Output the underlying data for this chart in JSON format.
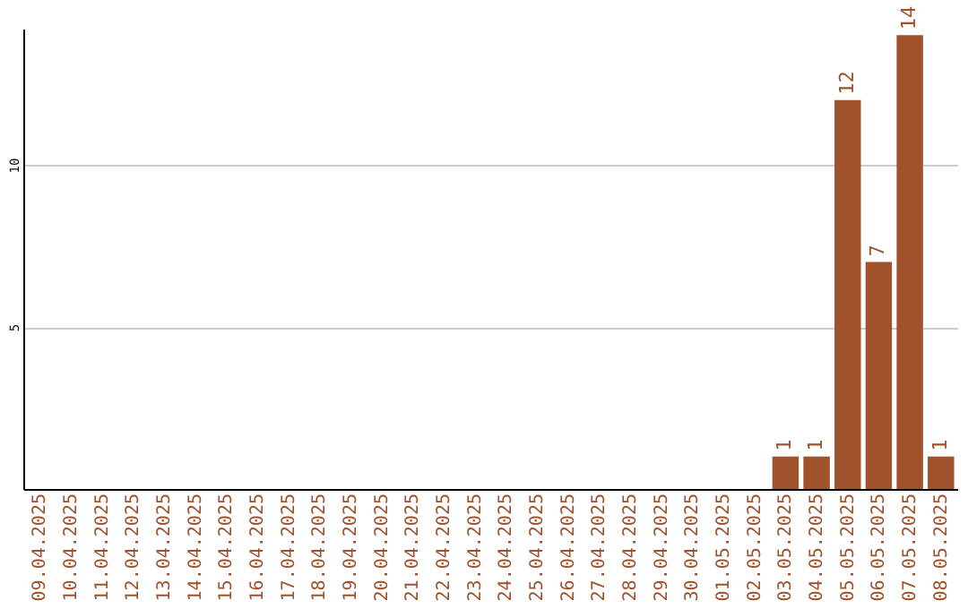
{
  "chart_data": {
    "type": "bar",
    "categories": [
      "09.04.2025",
      "10.04.2025",
      "11.04.2025",
      "12.04.2025",
      "13.04.2025",
      "14.04.2025",
      "15.04.2025",
      "16.04.2025",
      "17.04.2025",
      "18.04.2025",
      "19.04.2025",
      "20.04.2025",
      "21.04.2025",
      "22.04.2025",
      "23.04.2025",
      "24.04.2025",
      "25.04.2025",
      "26.04.2025",
      "27.04.2025",
      "28.04.2025",
      "29.04.2025",
      "30.04.2025",
      "01.05.2025",
      "02.05.2025",
      "03.05.2025",
      "04.05.2025",
      "05.05.2025",
      "06.05.2025",
      "07.05.2025",
      "08.05.2025"
    ],
    "values": [
      0,
      0,
      0,
      0,
      0,
      0,
      0,
      0,
      0,
      0,
      0,
      0,
      0,
      0,
      0,
      0,
      0,
      0,
      0,
      0,
      0,
      0,
      0,
      0,
      1,
      1,
      12,
      7,
      14,
      1
    ],
    "value_labels": [
      null,
      null,
      null,
      null,
      null,
      null,
      null,
      null,
      null,
      null,
      null,
      null,
      null,
      null,
      null,
      null,
      null,
      null,
      null,
      null,
      null,
      null,
      null,
      null,
      "1",
      "1",
      "12",
      "7",
      "14",
      "1"
    ],
    "color": "#a0522d",
    "ylim": [
      0,
      14.2
    ],
    "yticks": [
      5,
      10
    ],
    "grid": "y"
  }
}
